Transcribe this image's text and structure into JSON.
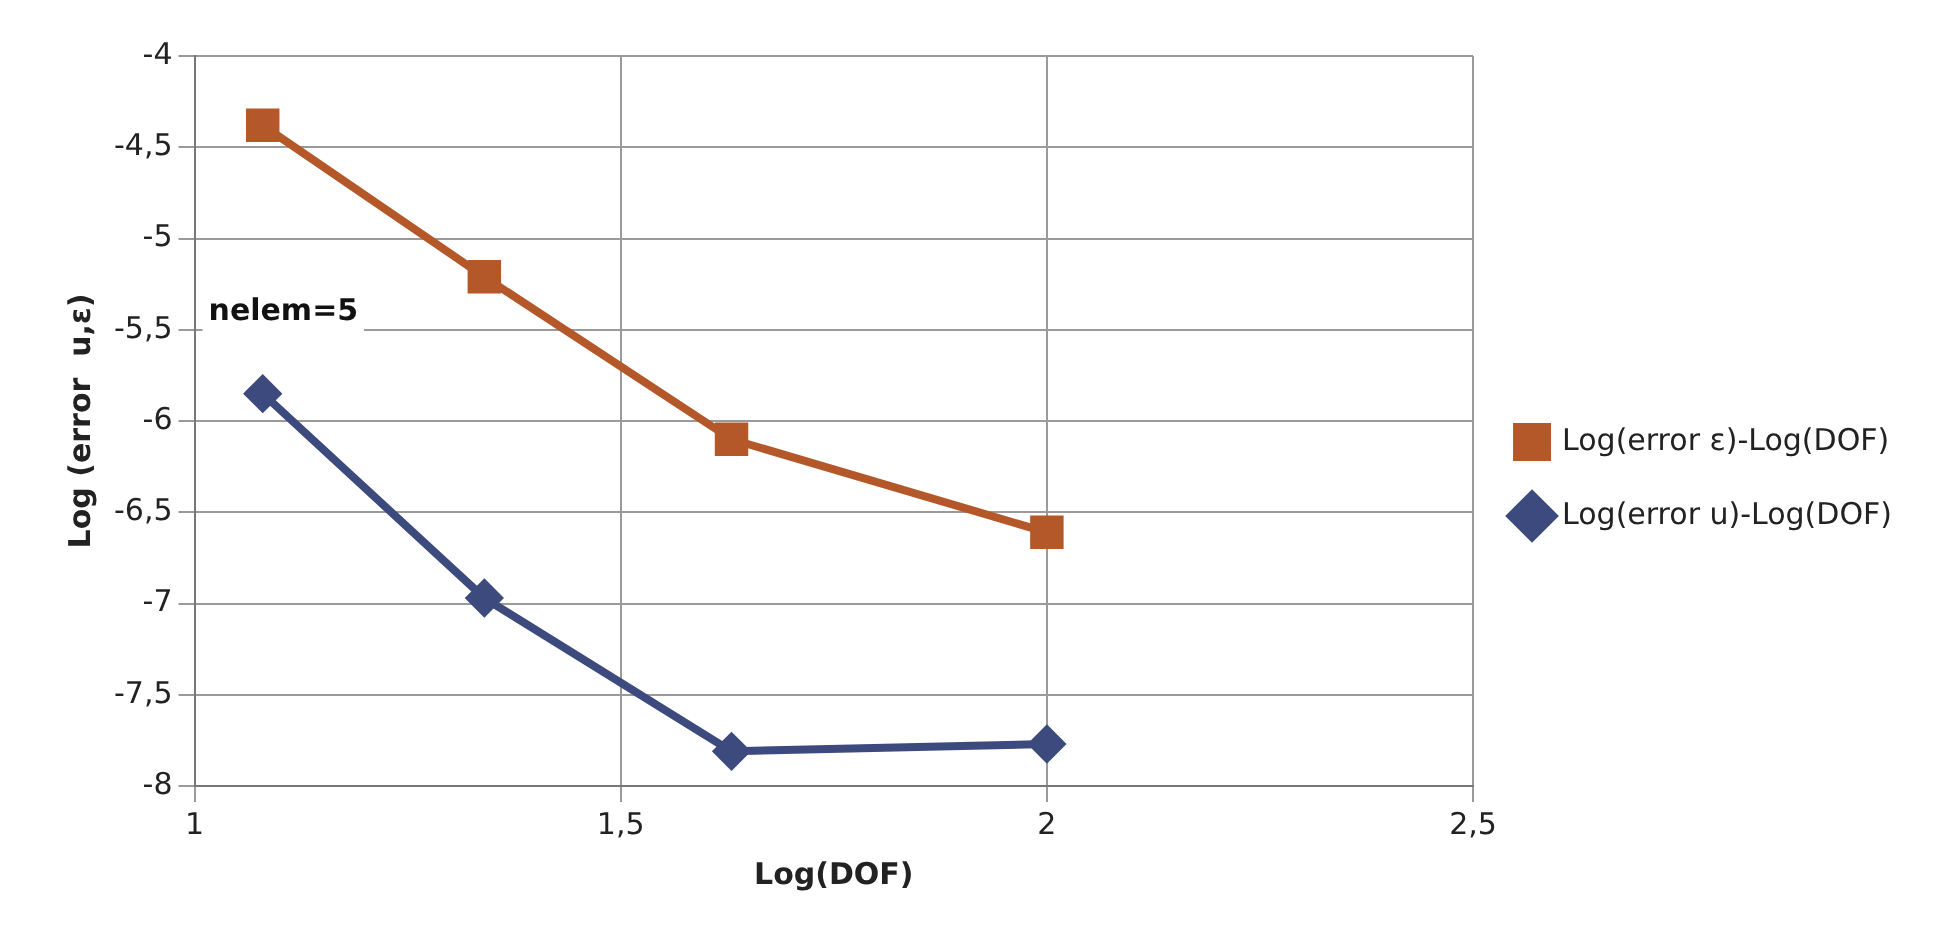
{
  "chart_data": {
    "type": "line",
    "xlabel": "Log(DOF)",
    "ylabel": "Log (error  u,ε)",
    "annotations": [
      "nelem=5"
    ],
    "series": [
      {
        "name": "Log(error ε)-Log(DOF)",
        "color": "#b4582a",
        "marker": "square",
        "x": [
          1.08,
          1.34,
          1.63,
          2.0
        ],
        "values": [
          -4.38,
          -5.21,
          -6.1,
          -6.61
        ]
      },
      {
        "name": "Log(error u)-Log(DOF)",
        "color": "#3c4a7e",
        "marker": "diamond",
        "x": [
          1.08,
          1.34,
          1.63,
          2.0
        ],
        "values": [
          -5.85,
          -6.97,
          -7.81,
          -7.77
        ]
      }
    ],
    "xlim": [
      1,
      2.5
    ],
    "xticks": [
      1,
      {
        "value": 1.5,
        "label": "1,5"
      },
      2,
      {
        "value": 2.5,
        "label": "2,5"
      }
    ],
    "ylim": [
      -8,
      -4
    ],
    "yticks": [
      -8,
      {
        "value": -7.5,
        "label": "-7,5"
      },
      -7,
      {
        "value": -6.5,
        "label": "-6,5"
      },
      -6,
      {
        "value": -5.5,
        "label": "-5,5"
      },
      -5,
      {
        "value": -4.5,
        "label": "-4,5"
      },
      -4
    ],
    "grid": true,
    "legend": "right",
    "line_style": "solid"
  }
}
